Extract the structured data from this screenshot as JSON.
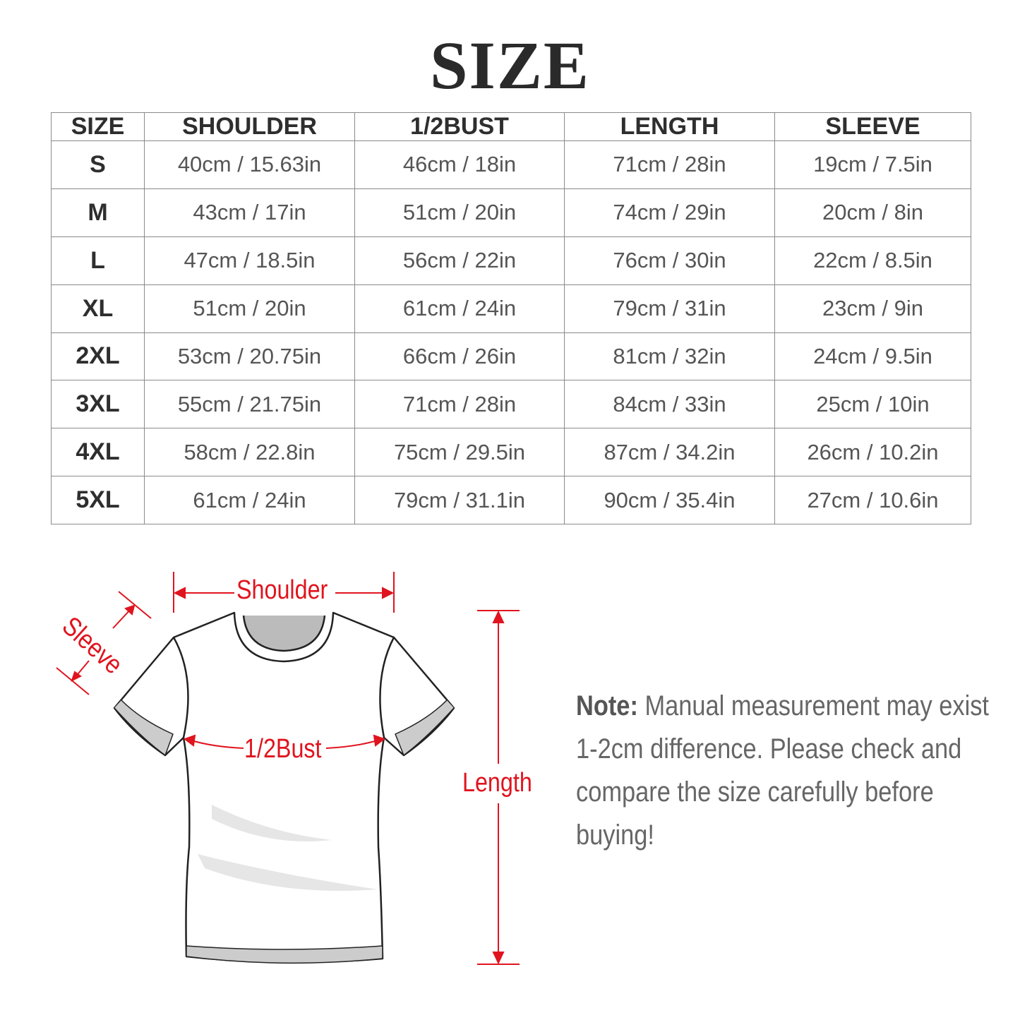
{
  "title": "SIZE",
  "table": {
    "headers": [
      "SIZE",
      "SHOULDER",
      "1/2BUST",
      "LENGTH",
      "SLEEVE"
    ],
    "rows": [
      [
        "S",
        "40cm / 15.63in",
        "46cm / 18in",
        "71cm / 28in",
        "19cm / 7.5in"
      ],
      [
        "M",
        "43cm / 17in",
        "51cm / 20in",
        "74cm / 29in",
        "20cm / 8in"
      ],
      [
        "L",
        "47cm / 18.5in",
        "56cm / 22in",
        "76cm / 30in",
        "22cm / 8.5in"
      ],
      [
        "XL",
        "51cm / 20in",
        "61cm / 24in",
        "79cm / 31in",
        "23cm / 9in"
      ],
      [
        "2XL",
        "53cm / 20.75in",
        "66cm / 26in",
        "81cm / 32in",
        "24cm / 9.5in"
      ],
      [
        "3XL",
        "55cm / 21.75in",
        "71cm / 28in",
        "84cm / 33in",
        "25cm / 10in"
      ],
      [
        "4XL",
        "58cm / 22.8in",
        "75cm / 29.5in",
        "87cm / 34.2in",
        "26cm / 10.2in"
      ],
      [
        "5XL",
        "61cm / 24in",
        "79cm / 31.1in",
        "90cm / 35.4in",
        "27cm / 10.6in"
      ]
    ]
  },
  "diagram": {
    "shoulder": "Shoulder",
    "sleeve": "Sleeve",
    "bust": "1/2Bust",
    "length": "Length",
    "accent_color": "#e0141e"
  },
  "note": {
    "label": "Note:",
    "text": " Manual measurement may exist 1-2cm difference. Please check and compare the size carefully before buying!"
  }
}
